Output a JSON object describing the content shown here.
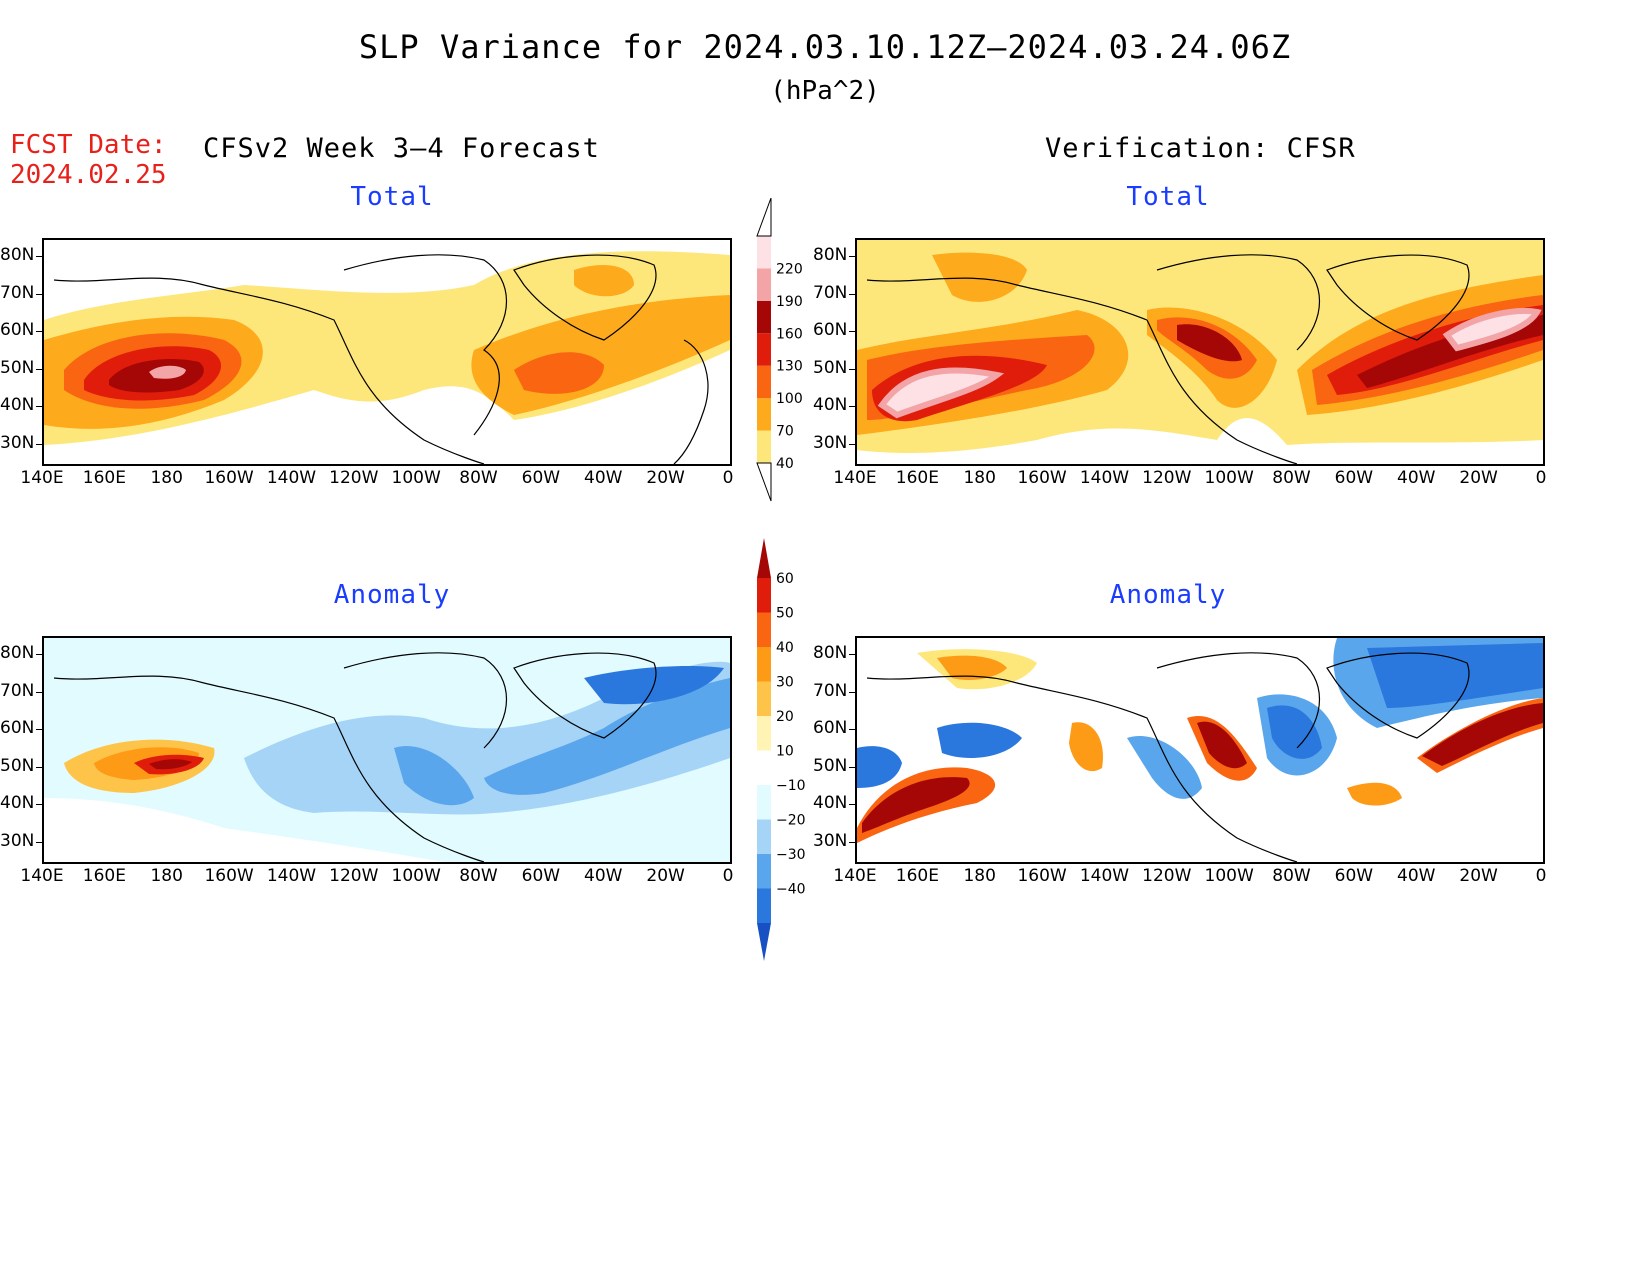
{
  "title": "SLP Variance for 2024.03.10.12Z—2024.03.24.06Z",
  "units": "(hPa^2)",
  "fcst_label": "FCST Date:",
  "fcst_date": "2024.02.25",
  "left_column_title": "CFSv2 Week 3—4 Forecast",
  "right_column_title": "Verification: CFSR",
  "panels": [
    {
      "id": "fc-total",
      "subtitle": "Total"
    },
    {
      "id": "ver-total",
      "subtitle": "Total"
    },
    {
      "id": "fc-anom",
      "subtitle": "Anomaly"
    },
    {
      "id": "ver-anom",
      "subtitle": "Anomaly"
    }
  ],
  "lat_labels": [
    "80N",
    "70N",
    "60N",
    "50N",
    "40N",
    "30N"
  ],
  "lon_labels": [
    "140E",
    "160E",
    "180",
    "160W",
    "140W",
    "120W",
    "100W",
    "80W",
    "60W",
    "40W",
    "20W",
    "0"
  ],
  "total_colorbar": {
    "labels": [
      "40",
      "70",
      "100",
      "130",
      "160",
      "190",
      "220"
    ],
    "colors": [
      "#fee77a",
      "#fdaa1c",
      "#f96511",
      "#e01c0a",
      "#a50707",
      "#f2a4a7",
      "#fde1e4"
    ]
  },
  "anomaly_colorbar": {
    "labels": [
      "60",
      "50",
      "40",
      "30",
      "20",
      "10",
      "−10",
      "−20",
      "−30",
      "−40"
    ],
    "colors": [
      "#a50707",
      "#e01c0a",
      "#f96511",
      "#fd9a16",
      "#fec44a",
      "#fff4b3",
      "#ffffff",
      "#e1fbff",
      "#a6d4f7",
      "#5aa6ec",
      "#2a77de",
      "#1650c2"
    ]
  }
}
